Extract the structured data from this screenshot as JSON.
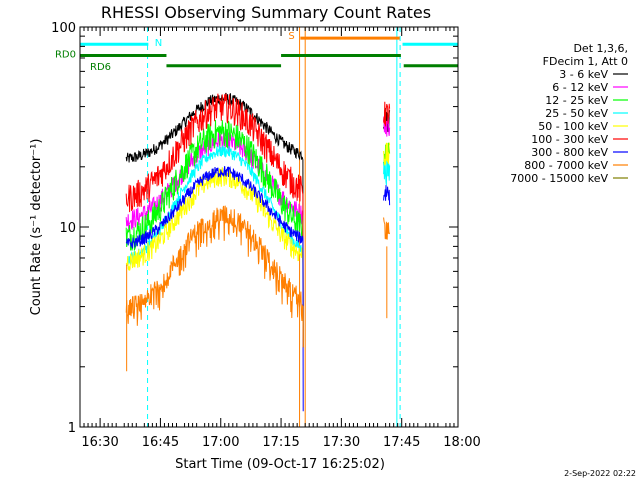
{
  "colors": {
    "background": "#ffffff",
    "axis": "#000000",
    "attenuator_marker": "#00ffff",
    "saa_marker": "#ff7f00",
    "decimation_marker": "#007f00",
    "night_marker": "#00ffff"
  },
  "chart_data": {
    "type": "line",
    "title": "RHESSI Observing Summary Count Rates",
    "xlabel": "Start Time (09-Oct-17 16:25:02)",
    "ylabel": "Count Rate (s⁻¹ detector⁻¹)",
    "footer": "2-Sep-2022 02:22",
    "x_unit": "minutes after 16:25:02 (09-Oct-17)",
    "xlim": [
      0,
      94
    ],
    "ylim": [
      1,
      100
    ],
    "y_scale": "log",
    "grid": false,
    "x_ticks": [
      {
        "value": 5,
        "label": "16:30"
      },
      {
        "value": 20,
        "label": "16:45"
      },
      {
        "value": 35,
        "label": "17:00"
      },
      {
        "value": 50,
        "label": "17:15"
      },
      {
        "value": 65,
        "label": "17:30"
      },
      {
        "value": 80,
        "label": "17:45"
      },
      {
        "value": 95,
        "label": "18:00"
      }
    ],
    "y_ticks": [
      {
        "value": 1,
        "label": "1"
      },
      {
        "value": 10,
        "label": "10"
      },
      {
        "value": 100,
        "label": "100"
      }
    ],
    "legend": {
      "position": "top-right",
      "header": [
        "Det 1,3,6,",
        "FDecim 1, Att 0"
      ],
      "entries": [
        {
          "label": "3 - 6 keV",
          "color": "#000000"
        },
        {
          "label": "6 - 12 keV",
          "color": "#ff00ff"
        },
        {
          "label": "12 - 25 keV",
          "color": "#00ff00"
        },
        {
          "label": "25 - 50 keV",
          "color": "#00ffff"
        },
        {
          "label": "50 - 100 keV",
          "color": "#ffff00"
        },
        {
          "label": "100 - 300 keV",
          "color": "#ff0000"
        },
        {
          "label": "300 - 800 keV",
          "color": "#0000ff"
        },
        {
          "label": "800 - 7000 keV",
          "color": "#ff7f00"
        },
        {
          "label": "7000 - 15000 keV",
          "color": "#7f7f00"
        }
      ]
    },
    "segments": [
      {
        "t_start": 11.5,
        "t_end": 55.5
      },
      {
        "t_start": 75.5,
        "t_end": 77.0
      }
    ],
    "series": [
      {
        "name": "3 - 6 keV",
        "color": "#000000",
        "base": 21.5,
        "peak": 44,
        "late_value": 35
      },
      {
        "name": "6 - 12 keV",
        "color": "#ff00ff",
        "base": 10.5,
        "peak": 27,
        "late_value": 33
      },
      {
        "name": "12 - 25 keV",
        "color": "#00ff00",
        "base": 8.5,
        "peak": 30,
        "late_value": 23
      },
      {
        "name": "25 - 50 keV",
        "color": "#00ffff",
        "base": 6.5,
        "peak": 24,
        "late_value": 19
      },
      {
        "name": "50 - 100 keV",
        "color": "#ffff00",
        "base": 6.5,
        "peak": 18,
        "late_value": 23
      },
      {
        "name": "100 - 300 keV",
        "color": "#ff0000",
        "base": 13.5,
        "peak": 40,
        "late_value": 37
      },
      {
        "name": "300 - 800 keV",
        "color": "#0000ff",
        "base": 8.0,
        "peak": 19,
        "late_value": 15
      },
      {
        "name": "800 - 7000 keV",
        "color": "#ff7f00",
        "base": 3.8,
        "peak": 11.5,
        "late_value": 10
      },
      {
        "name": "7000 - 15000 keV",
        "color": "#7f7f00",
        "base": null,
        "peak": null,
        "late_value": null
      }
    ],
    "flags": {
      "attenuator": {
        "label": "N",
        "color": "#00ffff",
        "segments": [
          [
            0,
            17
          ],
          [
            80.2,
            94
          ]
        ],
        "level": 82
      },
      "saa": {
        "label": "S",
        "color": "#ff7f00",
        "segments": [
          [
            54.8,
            79.5
          ]
        ],
        "level": 88
      },
      "decimation": {
        "labels": [
          "RD0",
          "RD6"
        ],
        "color": "#007f00",
        "segments_top": [
          [
            0,
            21.5
          ],
          [
            50,
            79.8
          ]
        ],
        "segments_bottom": [
          [
            21.5,
            50
          ],
          [
            80.5,
            94
          ]
        ],
        "level_top": 72,
        "level_bottom": 64
      },
      "night_lines": {
        "color": "#00ffff",
        "solid": [
          0,
          78.8
        ],
        "dashed": [
          16.8,
          79.6,
          94.8
        ]
      },
      "saa_lines": {
        "color": "#ff7f00",
        "solid": [
          54.6,
          56.0
        ]
      }
    }
  }
}
